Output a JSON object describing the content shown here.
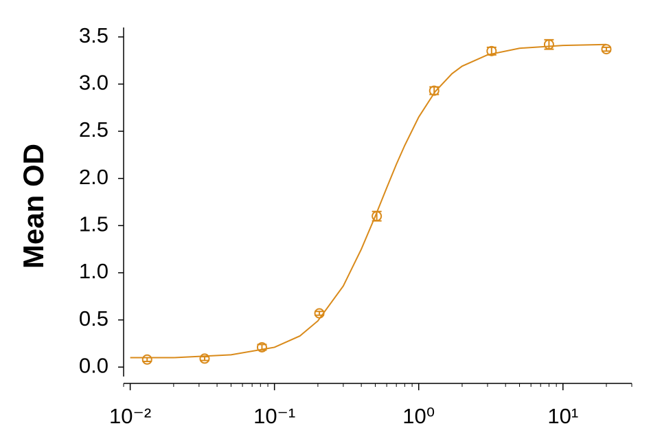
{
  "chart_data": {
    "type": "scatter",
    "y_label": "Mean OD",
    "color": "#d98a1a",
    "x": [
      0.0131,
      0.0328,
      0.0819,
      0.2048,
      0.512,
      1.28,
      3.2,
      8,
      20
    ],
    "values": [
      0.08,
      0.09,
      0.21,
      0.57,
      1.6,
      2.93,
      3.35,
      3.42,
      3.37
    ],
    "errors": [
      0.02,
      0.02,
      0.03,
      0.02,
      0.05,
      0.04,
      0.04,
      0.05,
      0.02
    ],
    "fit": {
      "x": [
        0.01,
        0.02,
        0.05,
        0.1,
        0.15,
        0.2,
        0.3,
        0.4,
        0.5,
        0.6,
        0.7,
        0.8,
        1,
        1.3,
        1.7,
        2,
        3,
        5,
        10,
        20
      ],
      "values": [
        0.1,
        0.1,
        0.13,
        0.21,
        0.33,
        0.49,
        0.86,
        1.25,
        1.6,
        1.9,
        2.15,
        2.35,
        2.65,
        2.92,
        3.11,
        3.19,
        3.31,
        3.38,
        3.41,
        3.42
      ]
    },
    "xlog": true,
    "xminor_ticks": true,
    "xlim": [
      0.009,
      30
    ],
    "ylim": [
      -0.1,
      3.6
    ],
    "xticks": [
      {
        "value": 0.01,
        "label": "10⁻²"
      },
      {
        "value": 0.1,
        "label": "10⁻¹"
      },
      {
        "value": 1,
        "label": "10⁰"
      },
      {
        "value": 10,
        "label": "10¹"
      }
    ],
    "yticks": [
      {
        "value": 0,
        "label": "0.0"
      },
      {
        "value": 0.5,
        "label": "0.5"
      },
      {
        "value": 1,
        "label": "1.0"
      },
      {
        "value": 1.5,
        "label": "1.5"
      },
      {
        "value": 2,
        "label": "2.0"
      },
      {
        "value": 2.5,
        "label": "2.5"
      },
      {
        "value": 3,
        "label": "3.0"
      },
      {
        "value": 3.5,
        "label": "3.5"
      }
    ]
  }
}
